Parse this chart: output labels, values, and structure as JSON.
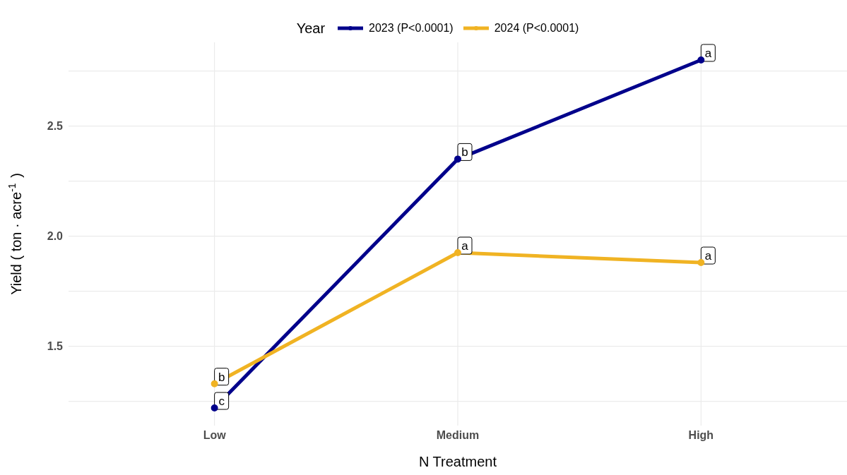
{
  "chart_data": {
    "type": "line",
    "xlabel": "N Treatment",
    "ylabel": "Yield ( ton · acre$^{-1}$ )",
    "legend_title": "Year",
    "legend": "top",
    "categories": [
      "Low",
      "Medium",
      "High"
    ],
    "series": [
      {
        "name": "2023 (P<0.0001)",
        "color": "#00008b",
        "values": [
          1.22,
          2.35,
          2.8
        ]
      },
      {
        "name": "2024 (P<0.0001)",
        "color": "#f0b323",
        "values": [
          1.33,
          1.925,
          1.88
        ]
      }
    ],
    "ylim": [
      1.14,
      2.88
    ],
    "yticks": [
      {
        "value": 1.25,
        "label": null
      },
      {
        "value": 1.5,
        "label": "1.5"
      },
      {
        "value": 1.75,
        "label": null
      },
      {
        "value": 2,
        "label": "2.0"
      },
      {
        "value": 2.25,
        "label": null
      },
      {
        "value": 2.5,
        "label": "2.5"
      },
      {
        "value": 2.75,
        "label": null
      }
    ],
    "grid": true,
    "marker": "circle",
    "line_style": "solid",
    "annotations": [
      {
        "text": "c",
        "x": "Low",
        "y": 1.22
      },
      {
        "text": "b",
        "x": "Medium",
        "y": 2.35
      },
      {
        "text": "a",
        "x": "High",
        "y": 2.8
      },
      {
        "text": "b",
        "x": "Low",
        "y": 1.33
      },
      {
        "text": "a",
        "x": "Medium",
        "y": 1.925
      },
      {
        "text": "a",
        "x": "High",
        "y": 1.88
      }
    ]
  }
}
